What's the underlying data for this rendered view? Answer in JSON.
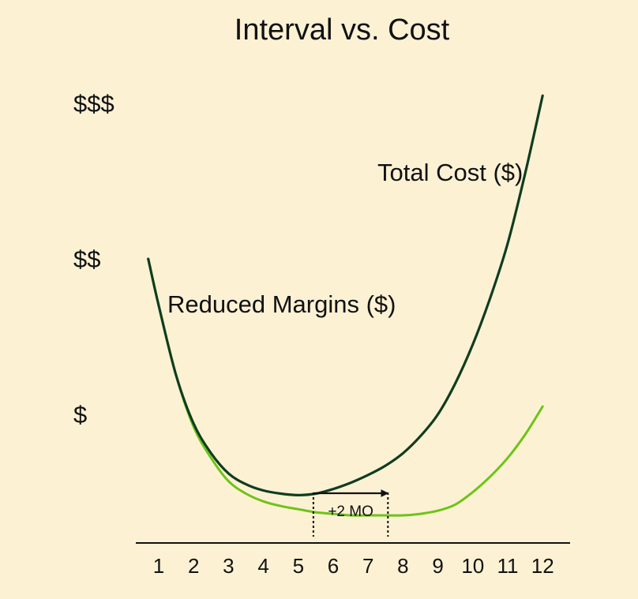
{
  "colors": {
    "background": "#fdf1d4",
    "total_cost": "#0f3d1e",
    "reduced_margins": "#6cc417",
    "axis": "#111111"
  },
  "chart_data": {
    "type": "line",
    "title": "Interval vs. Cost",
    "xlabel": "",
    "ylabel": "",
    "x_ticks": [
      "1",
      "2",
      "3",
      "4",
      "5",
      "6",
      "7",
      "8",
      "9",
      "10",
      "11",
      "12"
    ],
    "y_tick_labels": [
      "$",
      "$$",
      "$$$"
    ],
    "xlim": [
      0.5,
      12.5
    ],
    "ylim": [
      0,
      3.2
    ],
    "grid": false,
    "legend": "none",
    "series": [
      {
        "name": "Total Cost ($)",
        "x": [
          0.7,
          1,
          1.5,
          2,
          2.5,
          3,
          3.5,
          4,
          4.5,
          5,
          5.5,
          6,
          6.5,
          7,
          7.5,
          8,
          8.5,
          9,
          9.5,
          10,
          10.5,
          11,
          11.5,
          12
        ],
        "y": [
          2.0,
          1.7,
          1.25,
          0.94,
          0.75,
          0.62,
          0.55,
          0.51,
          0.49,
          0.48,
          0.49,
          0.52,
          0.56,
          0.61,
          0.67,
          0.75,
          0.86,
          1.0,
          1.2,
          1.45,
          1.75,
          2.1,
          2.55,
          3.05
        ]
      },
      {
        "name": "Reduced Margins ($)",
        "x": [
          0.7,
          1,
          1.5,
          2,
          2.5,
          3,
          3.5,
          4,
          4.5,
          5,
          5.5,
          6,
          6.5,
          7,
          7.5,
          8,
          8.5,
          9,
          9.5,
          10,
          10.5,
          11,
          11.5,
          12
        ],
        "y": [
          2.0,
          1.7,
          1.25,
          0.92,
          0.72,
          0.57,
          0.49,
          0.44,
          0.41,
          0.39,
          0.37,
          0.36,
          0.35,
          0.35,
          0.35,
          0.35,
          0.36,
          0.38,
          0.42,
          0.5,
          0.6,
          0.72,
          0.87,
          1.05
        ]
      }
    ],
    "annotation": {
      "text": "+2 MO",
      "from_x": 5.5,
      "to_x": 7.5
    }
  }
}
